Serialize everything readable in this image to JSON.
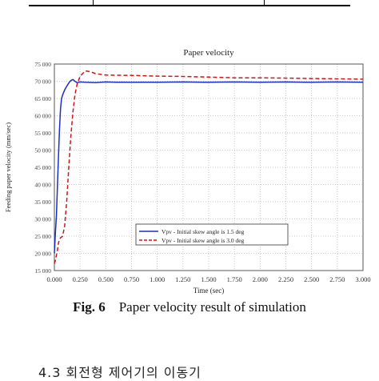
{
  "caption": {
    "label": "Fig. 6",
    "text": "Paper velocity result of simulation"
  },
  "bottom_heading": "4.3  회전형 제어기의 이동기",
  "chart_data": {
    "type": "line",
    "title": "Paper velocity",
    "xlabel": "Time (sec)",
    "ylabel": "Feeding paper velocity (mm/sec)",
    "xlim": [
      0,
      3.0
    ],
    "ylim": [
      15000,
      75000
    ],
    "x_ticks": [
      "0.000",
      "0.250",
      "0.500",
      "0.750",
      "1.000",
      "1.250",
      "1.500",
      "1.750",
      "2.000",
      "2.250",
      "2.500",
      "2.750",
      "3.000"
    ],
    "y_ticks": [
      "75 000",
      "70 000",
      "65 000",
      "60 000",
      "55 000",
      "50 000",
      "45 000",
      "40 000",
      "35 000",
      "30 000",
      "25 000",
      "20 000",
      "15 000"
    ],
    "grid": true,
    "legend_position": "lower-right",
    "series": [
      {
        "name": "Vpv - Initial skew angle is 1.5 deg",
        "color": "#1a2fc8",
        "style": "solid",
        "x": [
          0.0,
          0.01,
          0.02,
          0.03,
          0.04,
          0.05,
          0.06,
          0.07,
          0.08,
          0.1,
          0.12,
          0.14,
          0.16,
          0.18,
          0.2,
          0.22,
          0.25,
          0.3,
          0.4,
          0.5,
          0.6,
          0.75,
          1.0,
          1.25,
          1.5,
          1.75,
          2.0,
          2.25,
          2.5,
          2.75,
          3.0
        ],
        "y": [
          20000,
          26000,
          31000,
          40000,
          48000,
          56000,
          62000,
          65000,
          66000,
          67500,
          68500,
          69500,
          70200,
          70500,
          70000,
          69600,
          69800,
          69700,
          69600,
          69800,
          69700,
          69700,
          69700,
          69800,
          69700,
          69800,
          69700,
          69800,
          69700,
          69800,
          69700
        ]
      },
      {
        "name": "Vpv - Initial skew angle is 3.0 deg",
        "color": "#d21414",
        "style": "dashed",
        "x": [
          0.0,
          0.01,
          0.02,
          0.03,
          0.04,
          0.05,
          0.06,
          0.08,
          0.1,
          0.12,
          0.14,
          0.16,
          0.18,
          0.2,
          0.22,
          0.25,
          0.3,
          0.35,
          0.4,
          0.5,
          0.75,
          1.0,
          1.25,
          1.5,
          1.75,
          2.0,
          2.25,
          2.5,
          2.75,
          3.0
        ],
        "y": [
          17000,
          18000,
          19500,
          21000,
          23000,
          24000,
          24500,
          25000,
          28000,
          35000,
          45000,
          54000,
          61000,
          66000,
          69000,
          71500,
          73000,
          72800,
          72200,
          71800,
          71700,
          71500,
          71400,
          71200,
          71000,
          71000,
          70900,
          70800,
          70700,
          70600
        ]
      }
    ]
  }
}
